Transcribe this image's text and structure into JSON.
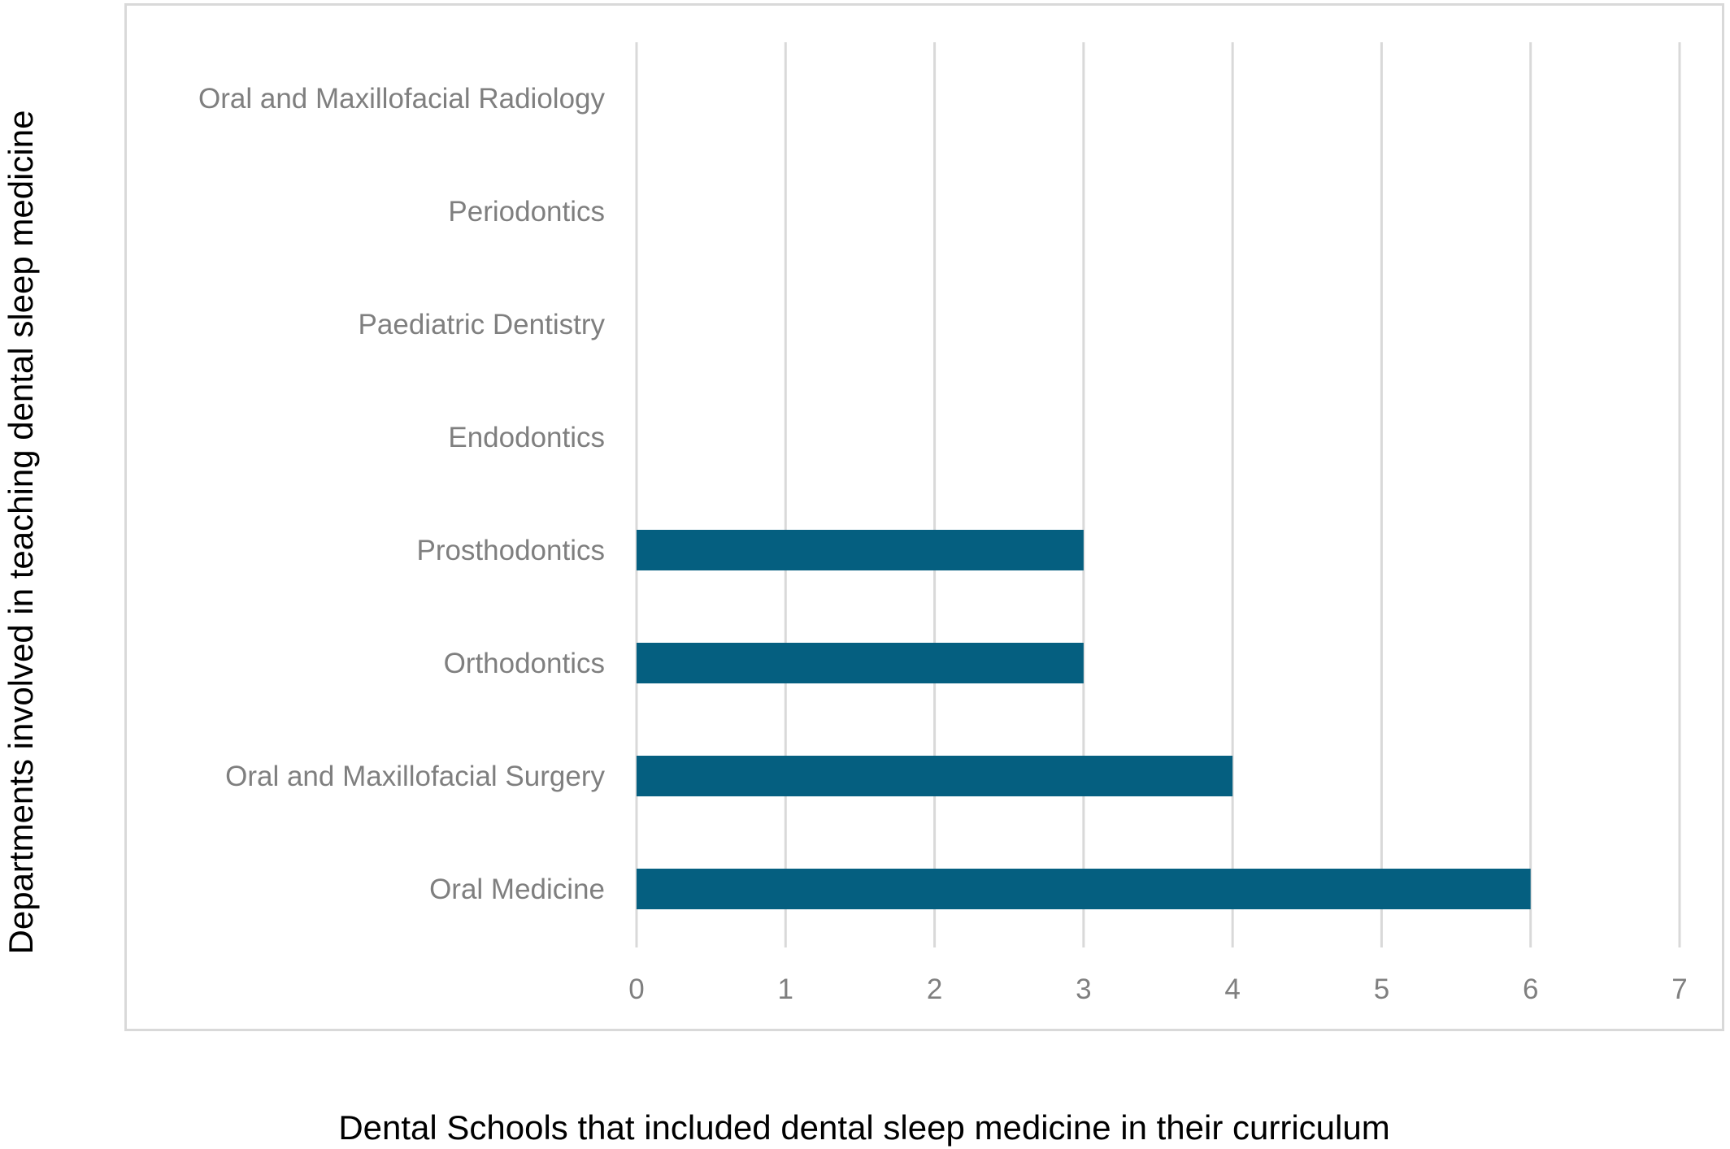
{
  "chart_data": {
    "type": "bar",
    "orientation": "horizontal",
    "categories": [
      "Oral and Maxillofacial Radiology",
      "Periodontics",
      "Paediatric Dentistry",
      "Endodontics",
      "Prosthodontics",
      "Orthodontics",
      "Oral and Maxillofacial Surgery",
      "Oral Medicine"
    ],
    "values": [
      0,
      0,
      0,
      0,
      3,
      3,
      4,
      6
    ],
    "xlim": [
      0,
      7
    ],
    "xticks": [
      "0",
      "1",
      "2",
      "3",
      "4",
      "5",
      "6",
      "7"
    ],
    "xlabel": "Dental Schools that included dental sleep medicine in their curriculum",
    "ylabel": "Departments involved in teaching dental sleep medicine",
    "grid": "vertical",
    "legend": "none",
    "bar_color": "#055f80",
    "grid_color": "#d9d9d9",
    "label_color": "#7f7f7f"
  }
}
